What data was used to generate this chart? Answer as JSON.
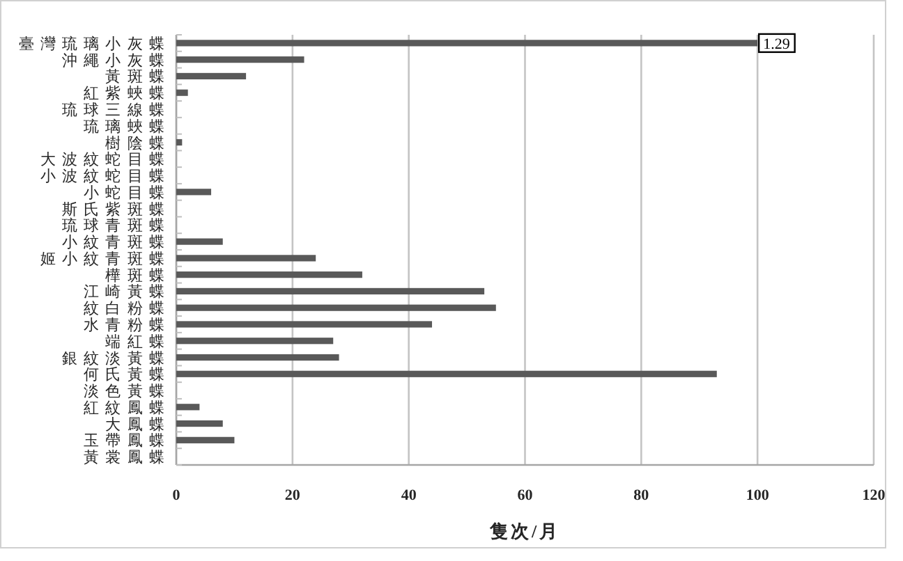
{
  "chart_data": {
    "type": "bar",
    "orientation": "horizontal",
    "xlabel": "隻次/月",
    "categories": [
      "臺灣琉璃小灰蝶",
      "沖繩小灰蝶",
      "黃斑蝶",
      "紅紫蛺蝶",
      "琉球三線蝶",
      "琉璃蛺蝶",
      "樹陰蝶",
      "大波紋蛇目蝶",
      "小波紋蛇目蝶",
      "小蛇目蝶",
      "斯氏紫斑蝶",
      "琉球青斑蝶",
      "小紋青斑蝶",
      "姬小紋青斑蝶",
      "樺斑蝶",
      "江崎黃蝶",
      "紋白粉蝶",
      "水青粉蝶",
      "端紅蝶",
      "銀紋淡黃蝶",
      "何氏黃蝶",
      "淡色黃蝶",
      "紅紋鳳蝶",
      "大鳳蝶",
      "玉帶鳳蝶",
      "黃裳鳳蝶"
    ],
    "values": [
      100,
      22,
      12,
      2,
      0,
      0,
      1,
      0,
      0,
      6,
      0,
      0,
      8,
      24,
      32,
      53,
      55,
      44,
      27,
      28,
      93,
      0,
      4,
      8,
      10,
      0
    ],
    "color": "#595959",
    "xlim": [
      0,
      120
    ],
    "xticks": [
      0,
      20,
      40,
      60,
      80,
      100,
      120
    ],
    "grid": "x",
    "annotations": [
      {
        "text": "1.29",
        "x": 100,
        "y": "臺灣琉璃小灰蝶"
      }
    ]
  }
}
